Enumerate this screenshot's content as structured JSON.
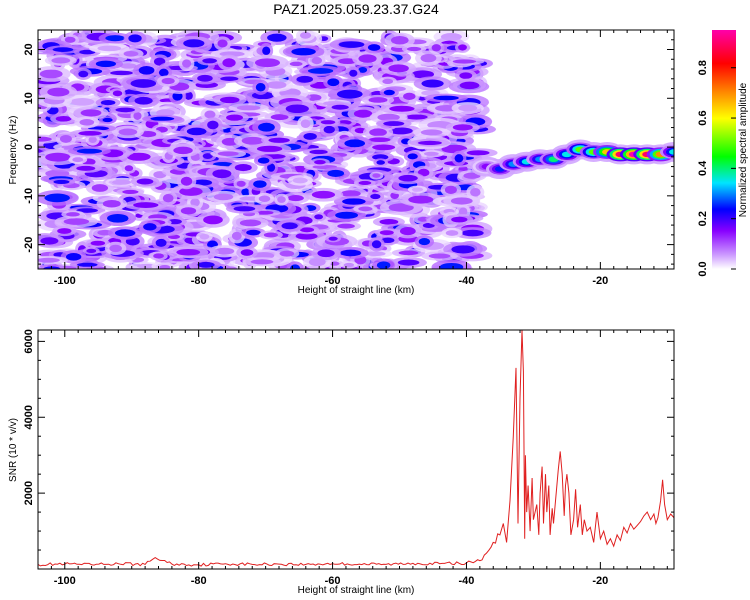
{
  "figure": {
    "title": "PAZ1.2025.059.23.37.G24"
  },
  "chart_data": [
    {
      "type": "heatmap",
      "title": "PAZ1.2025.059.23.37.G24",
      "xlabel": "Height of straight line (km)",
      "ylabel": "Frequency (Hz)",
      "xlim": [
        -104,
        -9
      ],
      "ylim": [
        -25,
        24
      ],
      "xticks": [
        -100,
        -80,
        -60,
        -40,
        -20
      ],
      "yticks": [
        -20,
        -10,
        0,
        10,
        20
      ],
      "colorbar": {
        "label": "Normalized spectral amplitude",
        "range": [
          0,
          0.95
        ],
        "ticks": [
          0.0,
          0.2,
          0.4,
          0.6,
          0.8
        ],
        "colormap": [
          "#ffffff",
          "#cc99ff",
          "#8800ff",
          "#0000ff",
          "#00e5ff",
          "#00ff00",
          "#ffff00",
          "#ff8800",
          "#ff0000",
          "#ff00aa"
        ]
      },
      "noise_region": {
        "x_range": [
          -104,
          -38
        ],
        "y_range": [
          -25,
          23
        ],
        "amplitude_range": [
          0.05,
          0.25
        ]
      },
      "signal_ridge": [
        {
          "x": -37,
          "freq": -4,
          "amp": 0.15
        },
        {
          "x": -35,
          "freq": -4.5,
          "amp": 0.25
        },
        {
          "x": -33,
          "freq": -3.5,
          "amp": 0.3
        },
        {
          "x": -31,
          "freq": -3,
          "amp": 0.35
        },
        {
          "x": -29,
          "freq": -2.5,
          "amp": 0.3
        },
        {
          "x": -27,
          "freq": -2.5,
          "amp": 0.4
        },
        {
          "x": -25,
          "freq": -1.5,
          "amp": 0.35
        },
        {
          "x": -23,
          "freq": -0.5,
          "amp": 0.5
        },
        {
          "x": -21,
          "freq": -1,
          "amp": 0.5
        },
        {
          "x": -19,
          "freq": -1,
          "amp": 0.65
        },
        {
          "x": -17,
          "freq": -1.5,
          "amp": 0.9
        },
        {
          "x": -15,
          "freq": -1.5,
          "amp": 0.95
        },
        {
          "x": -13,
          "freq": -1.5,
          "amp": 0.9
        },
        {
          "x": -11,
          "freq": -1.5,
          "amp": 0.7
        },
        {
          "x": -9,
          "freq": -1,
          "amp": 0.35
        }
      ]
    },
    {
      "type": "line",
      "xlabel": "Height of straight line (km)",
      "ylabel": "SNR (10 * v/v)",
      "xlim": [
        -104,
        -9
      ],
      "ylim": [
        0,
        6300
      ],
      "xticks": [
        -100,
        -80,
        -60,
        -40,
        -20
      ],
      "yticks": [
        2000,
        4000,
        6000
      ],
      "series": [
        {
          "color": "#e02020",
          "x": [
            -104,
            -100,
            -96,
            -92,
            -88,
            -86.5,
            -84,
            -80,
            -76,
            -72,
            -68,
            -64,
            -60,
            -56,
            -52,
            -48,
            -44,
            -40,
            -38,
            -37,
            -36,
            -35,
            -34.5,
            -34,
            -33.5,
            -33,
            -32.6,
            -32.3,
            -32,
            -31.7,
            -31.5,
            -31.3,
            -31.2,
            -31.0,
            -30.8,
            -30.5,
            -30.2,
            -30,
            -29.5,
            -29.2,
            -29,
            -28.7,
            -28.5,
            -28.2,
            -28,
            -27.7,
            -27.5,
            -27.2,
            -27,
            -26.6,
            -26.3,
            -26,
            -25.7,
            -25.4,
            -25.2,
            -25,
            -24.7,
            -24.4,
            -24,
            -23.7,
            -23.4,
            -23,
            -22.7,
            -22.4,
            -22,
            -21.5,
            -21,
            -20.5,
            -20,
            -19.5,
            -19,
            -18.5,
            -18,
            -17.5,
            -17,
            -16.5,
            -16,
            -15.5,
            -15,
            -14.5,
            -14,
            -13.5,
            -13,
            -12.5,
            -12,
            -11.7,
            -11.4,
            -11,
            -10.7,
            -10.4,
            -10,
            -9.5,
            -9
          ],
          "values": [
            120,
            130,
            110,
            140,
            120,
            300,
            130,
            110,
            140,
            120,
            130,
            120,
            140,
            130,
            120,
            150,
            140,
            160,
            220,
            420,
            700,
            900,
            1200,
            700,
            1800,
            3500,
            5300,
            1200,
            4500,
            6300,
            5200,
            800,
            3000,
            1500,
            2200,
            1000,
            2400,
            1300,
            1700,
            900,
            2000,
            2700,
            1200,
            2500,
            1500,
            2200,
            900,
            1600,
            1200,
            2000,
            2600,
            3100,
            2500,
            1400,
            2200,
            2500,
            2000,
            900,
            1300,
            2100,
            1100,
            1700,
            900,
            1300,
            1000,
            1100,
            700,
            1500,
            800,
            1000,
            650,
            800,
            600,
            900,
            750,
            1100,
            950,
            1200,
            1050,
            1150,
            1250,
            1400,
            1500,
            1300,
            1450,
            1200,
            1350,
            1800,
            2350,
            1700,
            1300,
            1450,
            1350
          ]
        }
      ]
    }
  ]
}
